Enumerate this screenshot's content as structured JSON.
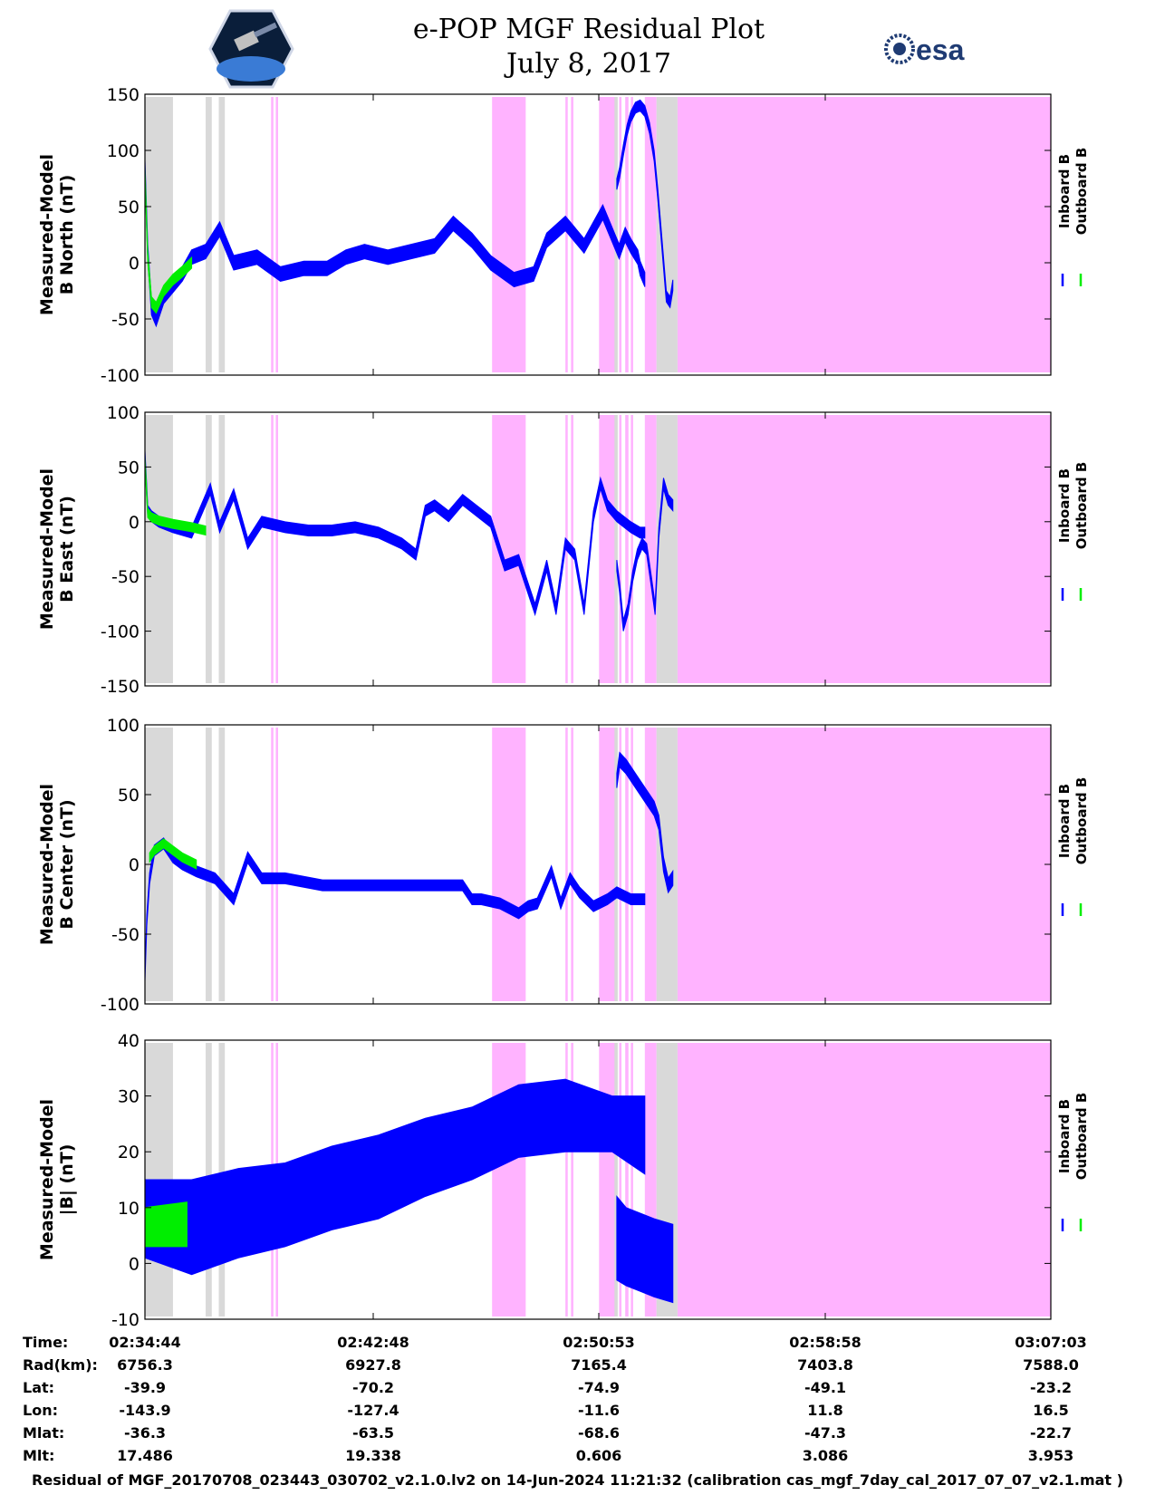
{
  "header": {
    "title_line1": "e-POP MGF Residual Plot",
    "title_line2": "July 8, 2017"
  },
  "logos": {
    "left": "cassiope-mission-logo",
    "right_text": "esa"
  },
  "colors": {
    "inboard": "#0000ff",
    "outboard": "#00ee00",
    "pink": "#ffb3ff",
    "gray": "#d9d9d9"
  },
  "legend": {
    "inboard": "Inboard B",
    "outboard": "Outboard B"
  },
  "chart_data": [
    {
      "type": "line",
      "ylabel_line1": "Measured-Model",
      "ylabel_line2": "B North (nT)",
      "ylim": [
        -100,
        150
      ],
      "yticks": [
        150,
        100,
        50,
        0,
        -50,
        -100
      ],
      "xlim": [
        0,
        1939
      ],
      "series": [
        {
          "name": "Inboard B",
          "x": [
            0,
            6,
            14,
            24,
            40,
            60,
            80,
            100,
            130,
            160,
            190,
            240,
            290,
            340,
            390,
            430,
            470,
            520,
            570,
            620,
            660,
            700,
            740,
            790,
            832,
            860,
            900,
            940,
            980,
            1015,
            1028,
            1040,
            1055,
            1060,
            1070
          ],
          "values": [
            85,
            10,
            -40,
            -50,
            -30,
            -20,
            -10,
            5,
            10,
            30,
            0,
            5,
            -10,
            -5,
            -5,
            5,
            10,
            5,
            10,
            15,
            35,
            20,
            0,
            -15,
            -10,
            20,
            35,
            15,
            45,
            10,
            25,
            15,
            5,
            -5,
            -15
          ],
          "band": 8
        },
        {
          "name": "Inboard B",
          "x": [
            1010,
            1016,
            1024,
            1032,
            1040,
            1050,
            1060,
            1070,
            1080,
            1090,
            1098,
            1106,
            1116,
            1124,
            1130
          ],
          "values": [
            70,
            80,
            100,
            118,
            130,
            138,
            140,
            135,
            120,
            95,
            60,
            20,
            -30,
            -35,
            -20
          ],
          "band": 6
        },
        {
          "name": "Outboard B",
          "x": [
            0,
            6,
            14,
            24,
            40,
            60,
            80,
            100
          ],
          "values": [
            80,
            5,
            -35,
            -40,
            -25,
            -15,
            -8,
            0
          ],
          "band": 6
        }
      ]
    },
    {
      "type": "line",
      "ylabel_line1": "Measured-Model",
      "ylabel_line2": "B East (nT)",
      "ylim": [
        -150,
        100
      ],
      "yticks": [
        100,
        50,
        0,
        -50,
        -100,
        -150
      ],
      "xlim": [
        0,
        1939
      ],
      "series": [
        {
          "name": "Inboard B",
          "x": [
            0,
            6,
            14,
            30,
            60,
            100,
            140,
            160,
            190,
            220,
            250,
            300,
            350,
            400,
            450,
            500,
            550,
            580,
            600,
            620,
            650,
            680,
            710,
            740,
            770,
            800,
            835,
            860,
            880,
            900,
            920,
            940,
            960,
            975,
            990,
            1010,
            1040,
            1060,
            1070
          ],
          "values": [
            60,
            10,
            5,
            0,
            -5,
            -10,
            30,
            -5,
            25,
            -20,
            0,
            -5,
            -8,
            -8,
            -5,
            -10,
            -20,
            -30,
            10,
            15,
            5,
            20,
            10,
            0,
            -40,
            -35,
            -80,
            -40,
            -80,
            -20,
            -30,
            -80,
            5,
            35,
            15,
            5,
            -5,
            -10,
            -10
          ],
          "band": 6
        },
        {
          "name": "Inboard B",
          "x": [
            1010,
            1016,
            1024,
            1034,
            1044,
            1054,
            1064,
            1074,
            1084,
            1092,
            1100,
            1110,
            1120,
            1130
          ],
          "values": [
            -40,
            -60,
            -95,
            -80,
            -50,
            -30,
            -20,
            -25,
            -55,
            -80,
            -10,
            35,
            20,
            15
          ],
          "band": 6
        },
        {
          "name": "Outboard B",
          "x": [
            0,
            6,
            14,
            30,
            60,
            100,
            130
          ],
          "values": [
            55,
            8,
            4,
            1,
            -2,
            -5,
            -8
          ],
          "band": 5
        }
      ]
    },
    {
      "type": "line",
      "ylabel_line1": "Measured-Model",
      "ylabel_line2": "B Center (nT)",
      "ylim": [
        -100,
        100
      ],
      "yticks": [
        100,
        50,
        0,
        -50,
        -100
      ],
      "xlim": [
        0,
        1939
      ],
      "series": [
        {
          "name": "Inboard B",
          "x": [
            0,
            4,
            10,
            20,
            40,
            60,
            80,
            110,
            150,
            190,
            220,
            250,
            300,
            380,
            460,
            540,
            620,
            680,
            700,
            720,
            760,
            800,
            820,
            840,
            870,
            890,
            910,
            930,
            960,
            990,
            1010,
            1040,
            1070
          ],
          "values": [
            -80,
            -40,
            -10,
            10,
            15,
            5,
            0,
            -5,
            -10,
            -25,
            5,
            -10,
            -10,
            -15,
            -15,
            -15,
            -15,
            -15,
            -25,
            -25,
            -28,
            -35,
            -30,
            -28,
            -5,
            -28,
            -10,
            -20,
            -30,
            -25,
            -20,
            -25,
            -25
          ],
          "band": 6
        },
        {
          "name": "Inboard B",
          "x": [
            1010,
            1016,
            1030,
            1050,
            1070,
            1090,
            1100,
            1110,
            1120,
            1130
          ],
          "values": [
            60,
            75,
            70,
            60,
            50,
            40,
            30,
            0,
            -15,
            -10
          ],
          "band": 8
        },
        {
          "name": "Outboard B",
          "x": [
            10,
            20,
            40,
            60,
            80,
            110
          ],
          "values": [
            5,
            10,
            15,
            10,
            5,
            0
          ],
          "band": 5
        }
      ]
    },
    {
      "type": "area",
      "ylabel_line1": "Measured-Model",
      "ylabel_line2": "|B| (nT)",
      "ylim": [
        -10,
        40
      ],
      "yticks": [
        40,
        30,
        20,
        10,
        0,
        -10
      ],
      "xlim": [
        0,
        1939
      ],
      "series": [
        {
          "name": "Inboard B",
          "x": [
            0,
            100,
            200,
            300,
            400,
            500,
            600,
            700,
            800,
            900,
            1000,
            1070
          ],
          "upper": [
            15,
            15,
            17,
            18,
            21,
            23,
            26,
            28,
            32,
            33,
            30,
            30
          ],
          "lower": [
            1,
            -2,
            1,
            3,
            6,
            8,
            12,
            15,
            19,
            20,
            20,
            16
          ]
        },
        {
          "name": "Inboard B",
          "x": [
            1010,
            1030,
            1060,
            1090,
            1130
          ],
          "upper": [
            12,
            10,
            9,
            8,
            7
          ],
          "lower": [
            -3,
            -4,
            -5,
            -6,
            -7
          ]
        },
        {
          "name": "Outboard B",
          "x": [
            0,
            90
          ],
          "upper": [
            10,
            11
          ],
          "lower": [
            3,
            3
          ]
        }
      ]
    }
  ],
  "shading": {
    "gray": [
      [
        0,
        60
      ],
      [
        130,
        143
      ],
      [
        158,
        171
      ],
      [
        1095,
        1140
      ],
      [
        1005,
        1012
      ]
    ],
    "pink": [
      [
        270,
        275
      ],
      [
        280,
        285
      ],
      [
        743,
        815
      ],
      [
        900,
        905
      ],
      [
        912,
        917
      ],
      [
        972,
        1010
      ],
      [
        1015,
        1020
      ],
      [
        1028,
        1035
      ],
      [
        1040,
        1045
      ],
      [
        1070,
        1095
      ],
      [
        1140,
        1939
      ]
    ]
  },
  "x_axis": {
    "tick_times": [
      "02:34:44",
      "02:42:48",
      "02:50:53",
      "02:58:58",
      "03:07:03"
    ]
  },
  "ephemeris": {
    "labels": [
      "Time:",
      "Rad(km):",
      "Lat:",
      "Lon:",
      "Mlat:",
      "Mlt:"
    ],
    "columns": [
      [
        "02:34:44",
        "6756.3",
        "-39.9",
        "-143.9",
        "-36.3",
        "17.486"
      ],
      [
        "02:42:48",
        "6927.8",
        "-70.2",
        "-127.4",
        "-63.5",
        "19.338"
      ],
      [
        "02:50:53",
        "7165.4",
        "-74.9",
        "-11.6",
        "-68.6",
        "0.606"
      ],
      [
        "02:58:58",
        "7403.8",
        "-49.1",
        "11.8",
        "-47.3",
        "3.086"
      ],
      [
        "03:07:03",
        "7588.0",
        "-23.2",
        "16.5",
        "-22.7",
        "3.953"
      ]
    ]
  },
  "footer": "Residual of MGF_20170708_023443_030702_v2.1.0.lv2 on 14-Jun-2024 11:21:32 (calibration cas_mgf_7day_cal_2017_07_07_v2.1.mat )"
}
